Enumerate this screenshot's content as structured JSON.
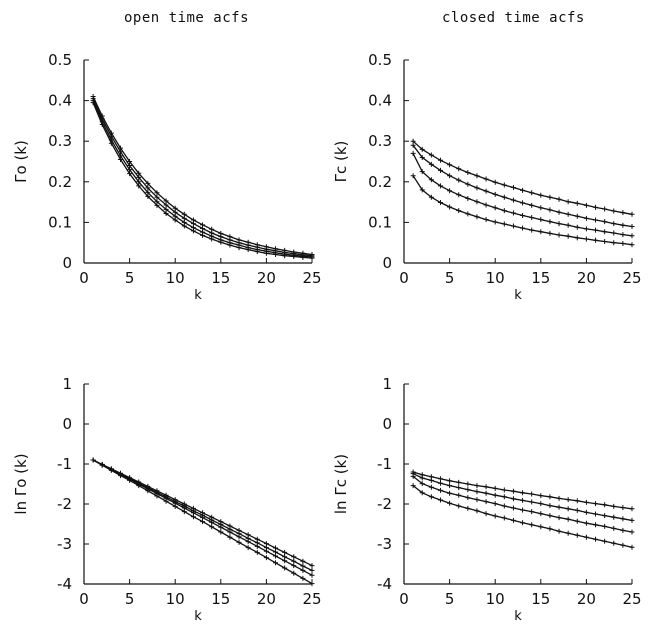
{
  "column_titles": [
    "open time acfs",
    "closed time acfs"
  ],
  "chart_data": [
    {
      "type": "line",
      "xlabel": "k",
      "ylabel": "Γo (k)",
      "xlim": [
        0,
        25
      ],
      "ylim": [
        0,
        0.5
      ],
      "xticks": [
        "0",
        "5",
        "10",
        "15",
        "20",
        "25"
      ],
      "yticks": [
        "0",
        "0.1",
        "0.2",
        "0.3",
        "0.4",
        "0.5"
      ],
      "grid": false,
      "x": [
        1,
        2,
        3,
        4,
        5,
        6,
        7,
        8,
        9,
        10,
        11,
        12,
        13,
        14,
        15,
        16,
        17,
        18,
        19,
        20,
        21,
        22,
        23,
        24,
        25
      ],
      "series": [
        {
          "values": [
            0.41,
            0.362,
            0.32,
            0.283,
            0.25,
            0.221,
            0.196,
            0.173,
            0.153,
            0.135,
            0.12,
            0.106,
            0.094,
            0.083,
            0.073,
            0.065,
            0.057,
            0.051,
            0.045,
            0.04,
            0.035,
            0.031,
            0.027,
            0.024,
            0.021
          ]
        },
        {
          "values": [
            0.405,
            0.355,
            0.312,
            0.274,
            0.24,
            0.211,
            0.185,
            0.162,
            0.143,
            0.125,
            0.11,
            0.097,
            0.085,
            0.074,
            0.065,
            0.057,
            0.05,
            0.044,
            0.039,
            0.034,
            0.03,
            0.026,
            0.023,
            0.02,
            0.018
          ]
        },
        {
          "values": [
            0.4,
            0.348,
            0.303,
            0.264,
            0.23,
            0.2,
            0.174,
            0.151,
            0.132,
            0.115,
            0.1,
            0.087,
            0.076,
            0.066,
            0.057,
            0.05,
            0.044,
            0.038,
            0.033,
            0.029,
            0.025,
            0.022,
            0.019,
            0.017,
            0.015
          ]
        },
        {
          "values": [
            0.395,
            0.341,
            0.295,
            0.255,
            0.22,
            0.19,
            0.164,
            0.142,
            0.122,
            0.106,
            0.091,
            0.079,
            0.068,
            0.059,
            0.051,
            0.044,
            0.038,
            0.033,
            0.028,
            0.024,
            0.021,
            0.018,
            0.016,
            0.014,
            0.012
          ]
        }
      ]
    },
    {
      "type": "line",
      "xlabel": "k",
      "ylabel": "Γc (k)",
      "xlim": [
        0,
        25
      ],
      "ylim": [
        0,
        0.5
      ],
      "xticks": [
        "0",
        "5",
        "10",
        "15",
        "20",
        "25"
      ],
      "yticks": [
        "0",
        "0.1",
        "0.2",
        "0.3",
        "0.4",
        "0.5"
      ],
      "grid": false,
      "x": [
        1,
        2,
        3,
        4,
        5,
        6,
        7,
        8,
        9,
        10,
        11,
        12,
        13,
        14,
        15,
        16,
        17,
        18,
        19,
        20,
        21,
        22,
        23,
        24,
        25
      ],
      "series": [
        {
          "values": [
            0.3,
            0.28,
            0.266,
            0.253,
            0.242,
            0.232,
            0.223,
            0.215,
            0.207,
            0.199,
            0.192,
            0.186,
            0.179,
            0.173,
            0.167,
            0.162,
            0.157,
            0.151,
            0.147,
            0.142,
            0.137,
            0.133,
            0.128,
            0.124,
            0.12
          ]
        },
        {
          "values": [
            0.29,
            0.26,
            0.243,
            0.228,
            0.215,
            0.204,
            0.194,
            0.185,
            0.177,
            0.169,
            0.162,
            0.155,
            0.148,
            0.142,
            0.136,
            0.131,
            0.125,
            0.12,
            0.115,
            0.11,
            0.106,
            0.102,
            0.097,
            0.093,
            0.09
          ]
        },
        {
          "values": [
            0.27,
            0.225,
            0.205,
            0.19,
            0.178,
            0.168,
            0.159,
            0.151,
            0.143,
            0.136,
            0.129,
            0.123,
            0.117,
            0.112,
            0.107,
            0.102,
            0.097,
            0.093,
            0.088,
            0.084,
            0.081,
            0.077,
            0.074,
            0.07,
            0.067
          ]
        },
        {
          "values": [
            0.215,
            0.18,
            0.162,
            0.149,
            0.138,
            0.129,
            0.121,
            0.114,
            0.107,
            0.101,
            0.096,
            0.091,
            0.086,
            0.081,
            0.077,
            0.073,
            0.069,
            0.066,
            0.062,
            0.059,
            0.056,
            0.053,
            0.05,
            0.048,
            0.045
          ]
        }
      ]
    },
    {
      "type": "line",
      "xlabel": "k",
      "ylabel": "ln Γo (k)",
      "xlim": [
        0,
        25
      ],
      "ylim": [
        -4,
        1
      ],
      "xticks": [
        "0",
        "5",
        "10",
        "15",
        "20",
        "25"
      ],
      "yticks": [
        "-4",
        "-3",
        "-2",
        "-1",
        "0",
        "1"
      ],
      "grid": false,
      "x": [
        1,
        2,
        3,
        4,
        5,
        6,
        7,
        8,
        9,
        10,
        11,
        12,
        13,
        14,
        15,
        16,
        17,
        18,
        19,
        20,
        21,
        22,
        23,
        24,
        25
      ],
      "series": [
        {
          "values": [
            -0.9,
            -1.02,
            -1.14,
            -1.26,
            -1.38,
            -1.5,
            -1.62,
            -1.74,
            -1.86,
            -1.98,
            -2.1,
            -2.22,
            -2.34,
            -2.46,
            -2.58,
            -2.7,
            -2.82,
            -2.94,
            -3.06,
            -3.18,
            -3.3,
            -3.42,
            -3.54,
            -3.66,
            -3.78
          ]
        },
        {
          "values": [
            -0.9,
            -1.03,
            -1.16,
            -1.29,
            -1.41,
            -1.54,
            -1.67,
            -1.8,
            -1.93,
            -2.06,
            -2.19,
            -2.32,
            -2.44,
            -2.57,
            -2.7,
            -2.83,
            -2.96,
            -3.09,
            -3.21,
            -3.34,
            -3.47,
            -3.6,
            -3.73,
            -3.86,
            -3.99
          ]
        },
        {
          "values": [
            -0.9,
            -1.01,
            -1.12,
            -1.23,
            -1.34,
            -1.45,
            -1.56,
            -1.67,
            -1.78,
            -1.89,
            -2.0,
            -2.11,
            -2.22,
            -2.33,
            -2.44,
            -2.55,
            -2.66,
            -2.77,
            -2.88,
            -2.99,
            -3.1,
            -3.21,
            -3.32,
            -3.43,
            -3.54
          ]
        },
        {
          "values": [
            -0.9,
            -1.02,
            -1.13,
            -1.25,
            -1.36,
            -1.48,
            -1.59,
            -1.71,
            -1.82,
            -1.94,
            -2.05,
            -2.17,
            -2.28,
            -2.4,
            -2.51,
            -2.63,
            -2.74,
            -2.86,
            -2.97,
            -3.09,
            -3.2,
            -3.32,
            -3.43,
            -3.55,
            -3.66
          ]
        }
      ]
    },
    {
      "type": "line",
      "xlabel": "k",
      "ylabel": "ln Γc (k)",
      "xlim": [
        0,
        25
      ],
      "ylim": [
        -4,
        1
      ],
      "xticks": [
        "0",
        "5",
        "10",
        "15",
        "20",
        "25"
      ],
      "yticks": [
        "-4",
        "-3",
        "-2",
        "-1",
        "0",
        "1"
      ],
      "grid": false,
      "x": [
        1,
        2,
        3,
        4,
        5,
        6,
        7,
        8,
        9,
        10,
        11,
        12,
        13,
        14,
        15,
        16,
        17,
        18,
        19,
        20,
        21,
        22,
        23,
        24,
        25
      ],
      "series": [
        {
          "values": [
            -1.2,
            -1.27,
            -1.32,
            -1.37,
            -1.42,
            -1.46,
            -1.5,
            -1.54,
            -1.57,
            -1.61,
            -1.65,
            -1.68,
            -1.72,
            -1.75,
            -1.79,
            -1.82,
            -1.86,
            -1.89,
            -1.92,
            -1.96,
            -1.99,
            -2.02,
            -2.06,
            -2.09,
            -2.12
          ]
        },
        {
          "values": [
            -1.24,
            -1.35,
            -1.41,
            -1.48,
            -1.54,
            -1.59,
            -1.64,
            -1.69,
            -1.73,
            -1.78,
            -1.82,
            -1.87,
            -1.91,
            -1.95,
            -1.99,
            -2.04,
            -2.08,
            -2.12,
            -2.16,
            -2.21,
            -2.25,
            -2.29,
            -2.33,
            -2.37,
            -2.41
          ]
        },
        {
          "values": [
            -1.31,
            -1.49,
            -1.58,
            -1.66,
            -1.73,
            -1.78,
            -1.84,
            -1.89,
            -1.94,
            -1.99,
            -2.05,
            -2.1,
            -2.15,
            -2.19,
            -2.24,
            -2.29,
            -2.34,
            -2.38,
            -2.43,
            -2.48,
            -2.52,
            -2.56,
            -2.61,
            -2.66,
            -2.7
          ]
        },
        {
          "values": [
            -1.54,
            -1.72,
            -1.82,
            -1.9,
            -1.98,
            -2.05,
            -2.11,
            -2.17,
            -2.24,
            -2.3,
            -2.35,
            -2.41,
            -2.47,
            -2.52,
            -2.57,
            -2.62,
            -2.68,
            -2.73,
            -2.78,
            -2.83,
            -2.88,
            -2.93,
            -2.98,
            -3.03,
            -3.08
          ]
        }
      ]
    }
  ]
}
